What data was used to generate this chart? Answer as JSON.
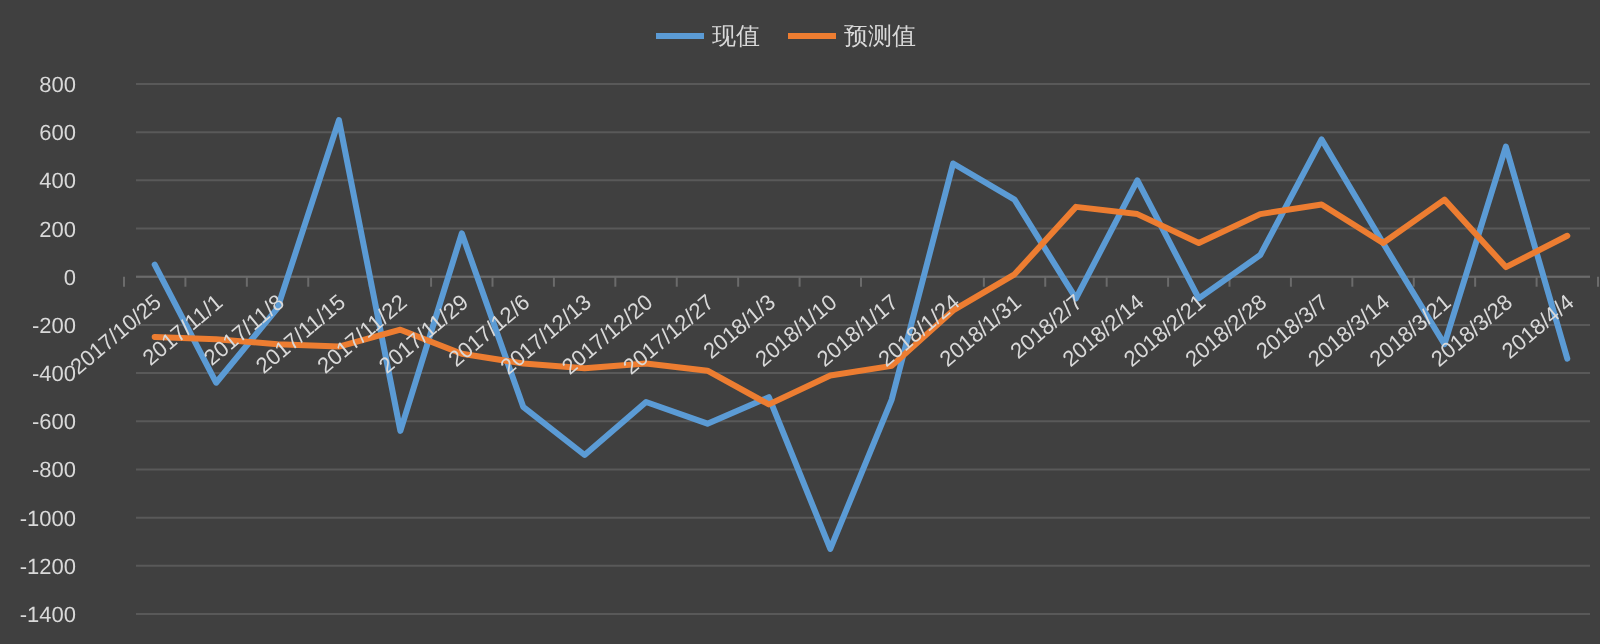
{
  "chart_data": {
    "type": "line",
    "categories": [
      "2017/10/25",
      "2017/11/1",
      "2017/11/8",
      "2017/11/15",
      "2017/11/22",
      "2017/11/29",
      "2017/12/6",
      "2017/12/13",
      "2017/12/20",
      "2017/12/27",
      "2018/1/3",
      "2018/1/10",
      "2018/1/17",
      "2018/1/24",
      "2018/1/31",
      "2018/2/7",
      "2018/2/14",
      "2018/2/21",
      "2018/2/28",
      "2018/3/7",
      "2018/3/14",
      "2018/3/21",
      "2018/3/28",
      "2018/4/4"
    ],
    "series": [
      {
        "name": "现值",
        "color": "#5b9bd5",
        "values": [
          50,
          -440,
          -130,
          650,
          -640,
          180,
          -540,
          -740,
          -520,
          -610,
          -500,
          -1130,
          -510,
          470,
          320,
          -90,
          400,
          -90,
          90,
          570,
          140,
          -280,
          540,
          -340
        ]
      },
      {
        "name": "预测值",
        "color": "#ed7d31",
        "values": [
          -250,
          -260,
          -280,
          -290,
          -220,
          -320,
          -360,
          -380,
          -360,
          -390,
          -530,
          -410,
          -370,
          -140,
          10,
          290,
          260,
          140,
          260,
          300,
          140,
          320,
          40,
          170
        ]
      }
    ],
    "ylim": [
      -1400,
      800
    ],
    "yticks": [
      -1400,
      -1200,
      -1000,
      -800,
      -600,
      -400,
      -200,
      0,
      200,
      400,
      600,
      800
    ],
    "grid": "y",
    "legend": "top",
    "marker": "none",
    "line_style": "solid"
  }
}
